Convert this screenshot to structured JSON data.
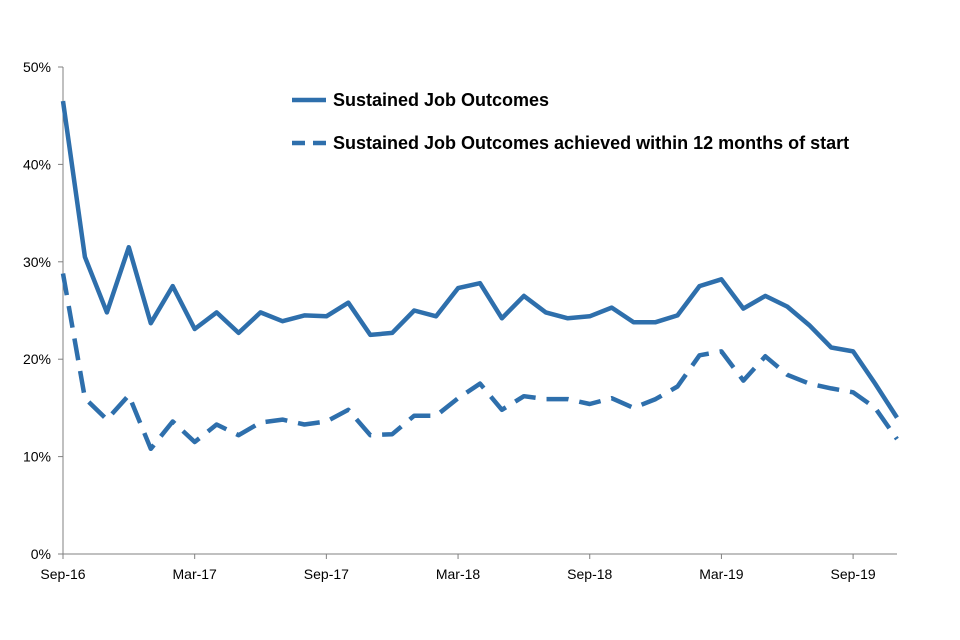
{
  "chart_data": {
    "type": "line",
    "title": "",
    "xlabel": "",
    "ylabel": "",
    "ylim": [
      0,
      50
    ],
    "y_ticks": [
      "0%",
      "10%",
      "20%",
      "30%",
      "40%",
      "50%"
    ],
    "x_tick_labels": [
      "Sep-16",
      "Mar-17",
      "Sep-17",
      "Mar-18",
      "Sep-18",
      "Mar-19",
      "Sep-19"
    ],
    "categories": [
      "Sep-16",
      "Oct-16",
      "Nov-16",
      "Dec-16",
      "Jan-17",
      "Feb-17",
      "Mar-17",
      "Apr-17",
      "May-17",
      "Jun-17",
      "Jul-17",
      "Aug-17",
      "Sep-17",
      "Oct-17",
      "Nov-17",
      "Dec-17",
      "Jan-18",
      "Feb-18",
      "Mar-18",
      "Apr-18",
      "May-18",
      "Jun-18",
      "Jul-18",
      "Aug-18",
      "Sep-18",
      "Oct-18",
      "Nov-18",
      "Dec-18",
      "Jan-19",
      "Feb-19",
      "Mar-19",
      "Apr-19",
      "May-19",
      "Jun-19",
      "Jul-19",
      "Aug-19",
      "Sep-19",
      "Oct-19",
      "Nov-19"
    ],
    "series": [
      {
        "name": "Sustained Job Outcomes",
        "style": "solid",
        "values": [
          46.5,
          30.5,
          24.8,
          31.5,
          23.7,
          27.5,
          23.1,
          24.8,
          22.7,
          24.8,
          23.9,
          24.5,
          24.4,
          25.8,
          22.5,
          22.7,
          25.0,
          24.4,
          27.3,
          27.8,
          24.2,
          26.5,
          24.8,
          24.2,
          24.4,
          25.3,
          23.8,
          23.8,
          24.5,
          27.5,
          28.2,
          25.2,
          26.5,
          25.4,
          23.5,
          21.2,
          20.8,
          17.5,
          14.0
        ]
      },
      {
        "name": "Sustained Job Outcomes achieved within 12 months of start",
        "style": "dashed",
        "values": [
          28.8,
          16.0,
          13.8,
          16.3,
          10.8,
          13.6,
          11.5,
          13.3,
          12.2,
          13.5,
          13.8,
          13.3,
          13.6,
          14.8,
          12.2,
          12.3,
          14.2,
          14.2,
          16.0,
          17.5,
          14.8,
          16.2,
          15.9,
          15.9,
          15.4,
          16.0,
          15.0,
          15.9,
          17.2,
          20.4,
          20.8,
          17.8,
          20.3,
          18.4,
          17.5,
          17.0,
          16.6,
          15.0,
          11.8
        ]
      }
    ],
    "colors": {
      "series": "#2e6fac",
      "axis": "#808080"
    },
    "grid": false,
    "legend_position": "top-right"
  }
}
